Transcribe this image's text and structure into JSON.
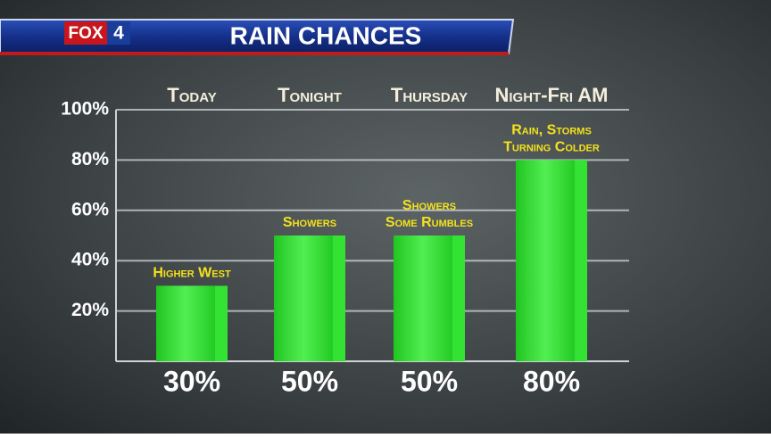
{
  "chart_data": {
    "type": "bar",
    "logo": {
      "name": "FOX",
      "number": "4"
    },
    "title": "RAIN CHANCES",
    "categories": [
      "Today",
      "Tonight",
      "Thursday",
      "Night-Fri AM"
    ],
    "values": [
      30,
      50,
      50,
      80
    ],
    "value_labels": [
      "30%",
      "50%",
      "50%",
      "80%"
    ],
    "notes": [
      [
        "Higher West"
      ],
      [
        "Showers"
      ],
      [
        "Showers",
        "Some Rumbles"
      ],
      [
        "Rain, Storms",
        "Turning Colder"
      ]
    ],
    "color": "#33e233",
    "ylim": [
      0,
      100
    ],
    "yticks": [
      {
        "value": 20,
        "label": "20%"
      },
      {
        "value": 40,
        "label": "40%"
      },
      {
        "value": 60,
        "label": "60%"
      },
      {
        "value": 80,
        "label": "80%"
      },
      {
        "value": 100,
        "label": "100%"
      }
    ],
    "grid": true
  }
}
